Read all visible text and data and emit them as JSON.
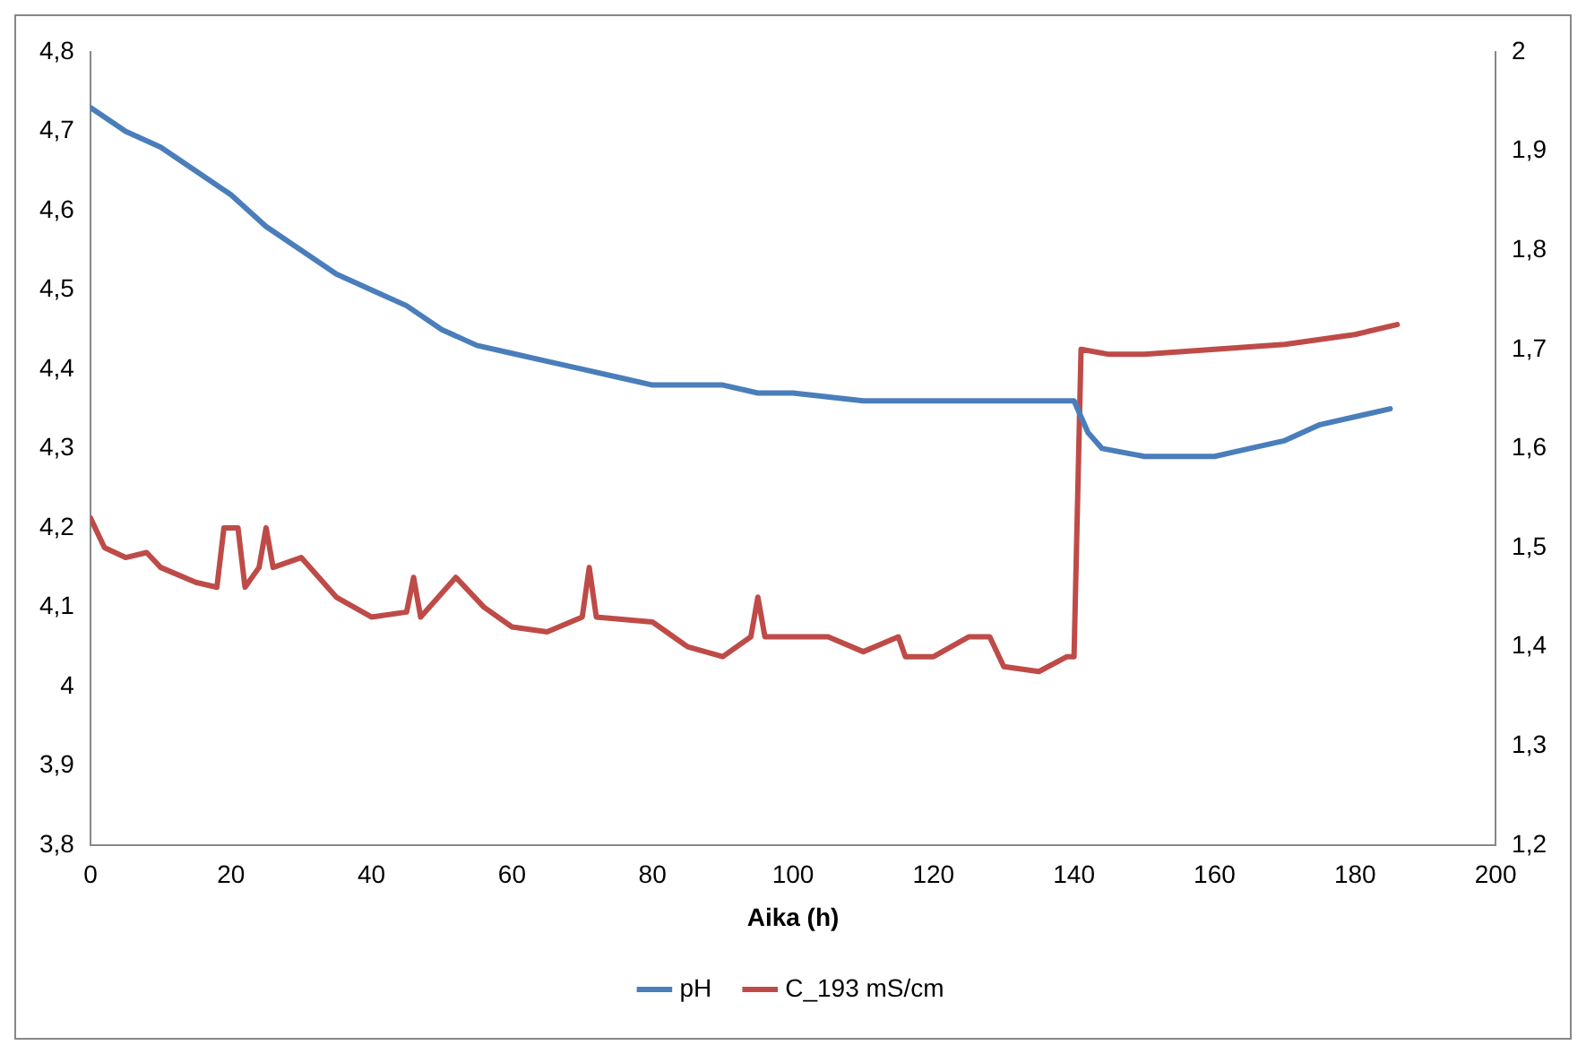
{
  "chart_data": {
    "type": "line",
    "xlabel": "Aika (h)",
    "xlim": [
      0,
      200
    ],
    "xticks": [
      0,
      20,
      40,
      60,
      80,
      100,
      120,
      140,
      160,
      180,
      200
    ],
    "ylim": [
      3.8,
      4.8
    ],
    "yticks": [
      {
        "value": 3.8,
        "label": "3,8"
      },
      {
        "value": 3.9,
        "label": "3,9"
      },
      {
        "value": 4,
        "label": "4"
      },
      {
        "value": 4.1,
        "label": "4,1"
      },
      {
        "value": 4.2,
        "label": "4,2"
      },
      {
        "value": 4.3,
        "label": "4,3"
      },
      {
        "value": 4.4,
        "label": "4,4"
      },
      {
        "value": 4.5,
        "label": "4,5"
      },
      {
        "value": 4.6,
        "label": "4,6"
      },
      {
        "value": 4.7,
        "label": "4,7"
      },
      {
        "value": 4.8,
        "label": "4,8"
      }
    ],
    "y2lim": [
      1.2,
      2
    ],
    "y2ticks": [
      {
        "value": 1.2,
        "label": "1,2"
      },
      {
        "value": 1.3,
        "label": "1,3"
      },
      {
        "value": 1.4,
        "label": "1,4"
      },
      {
        "value": 1.5,
        "label": "1,5"
      },
      {
        "value": 1.6,
        "label": "1,6"
      },
      {
        "value": 1.7,
        "label": "1,7"
      },
      {
        "value": 1.8,
        "label": "1,8"
      },
      {
        "value": 1.9,
        "label": "1,9"
      },
      {
        "value": 2,
        "label": "2"
      }
    ],
    "grid": false,
    "legend": "bottom",
    "marker": "none",
    "line_style": "solid",
    "series": [
      {
        "name": "pH",
        "color": "#4a7ebb",
        "x": [
          0,
          5,
          10,
          15,
          20,
          25,
          30,
          35,
          40,
          45,
          50,
          55,
          60,
          65,
          70,
          75,
          80,
          90,
          95,
          100,
          110,
          120,
          130,
          140,
          142,
          144,
          150,
          160,
          165,
          170,
          175,
          180,
          185
        ],
        "values": [
          4.73,
          4.7,
          4.68,
          4.65,
          4.62,
          4.58,
          4.55,
          4.52,
          4.5,
          4.48,
          4.45,
          4.43,
          4.42,
          4.41,
          4.4,
          4.39,
          4.38,
          4.38,
          4.37,
          4.37,
          4.36,
          4.36,
          4.36,
          4.36,
          4.32,
          4.3,
          4.29,
          4.29,
          4.3,
          4.31,
          4.33,
          4.34,
          4.35
        ]
      },
      {
        "name": "C_193 mS/cm",
        "color": "#be4b48",
        "axis": "y2",
        "x": [
          0,
          2,
          5,
          8,
          10,
          15,
          18,
          19,
          21,
          22,
          24,
          25,
          26,
          30,
          35,
          40,
          45,
          46,
          47,
          52,
          56,
          60,
          65,
          70,
          71,
          72,
          80,
          85,
          90,
          94,
          95,
          96,
          105,
          110,
          115,
          116,
          120,
          125,
          128,
          130,
          135,
          139,
          140,
          141,
          145,
          150,
          160,
          170,
          180,
          186
        ],
        "values": [
          1.53,
          1.5,
          1.49,
          1.495,
          1.48,
          1.465,
          1.46,
          1.52,
          1.52,
          1.46,
          1.48,
          1.52,
          1.48,
          1.49,
          1.45,
          1.43,
          1.435,
          1.47,
          1.43,
          1.47,
          1.44,
          1.42,
          1.415,
          1.43,
          1.48,
          1.43,
          1.425,
          1.4,
          1.39,
          1.41,
          1.45,
          1.41,
          1.41,
          1.395,
          1.41,
          1.39,
          1.39,
          1.41,
          1.41,
          1.38,
          1.375,
          1.39,
          1.39,
          1.7,
          1.695,
          1.695,
          1.7,
          1.705,
          1.715,
          1.725
        ]
      }
    ]
  }
}
